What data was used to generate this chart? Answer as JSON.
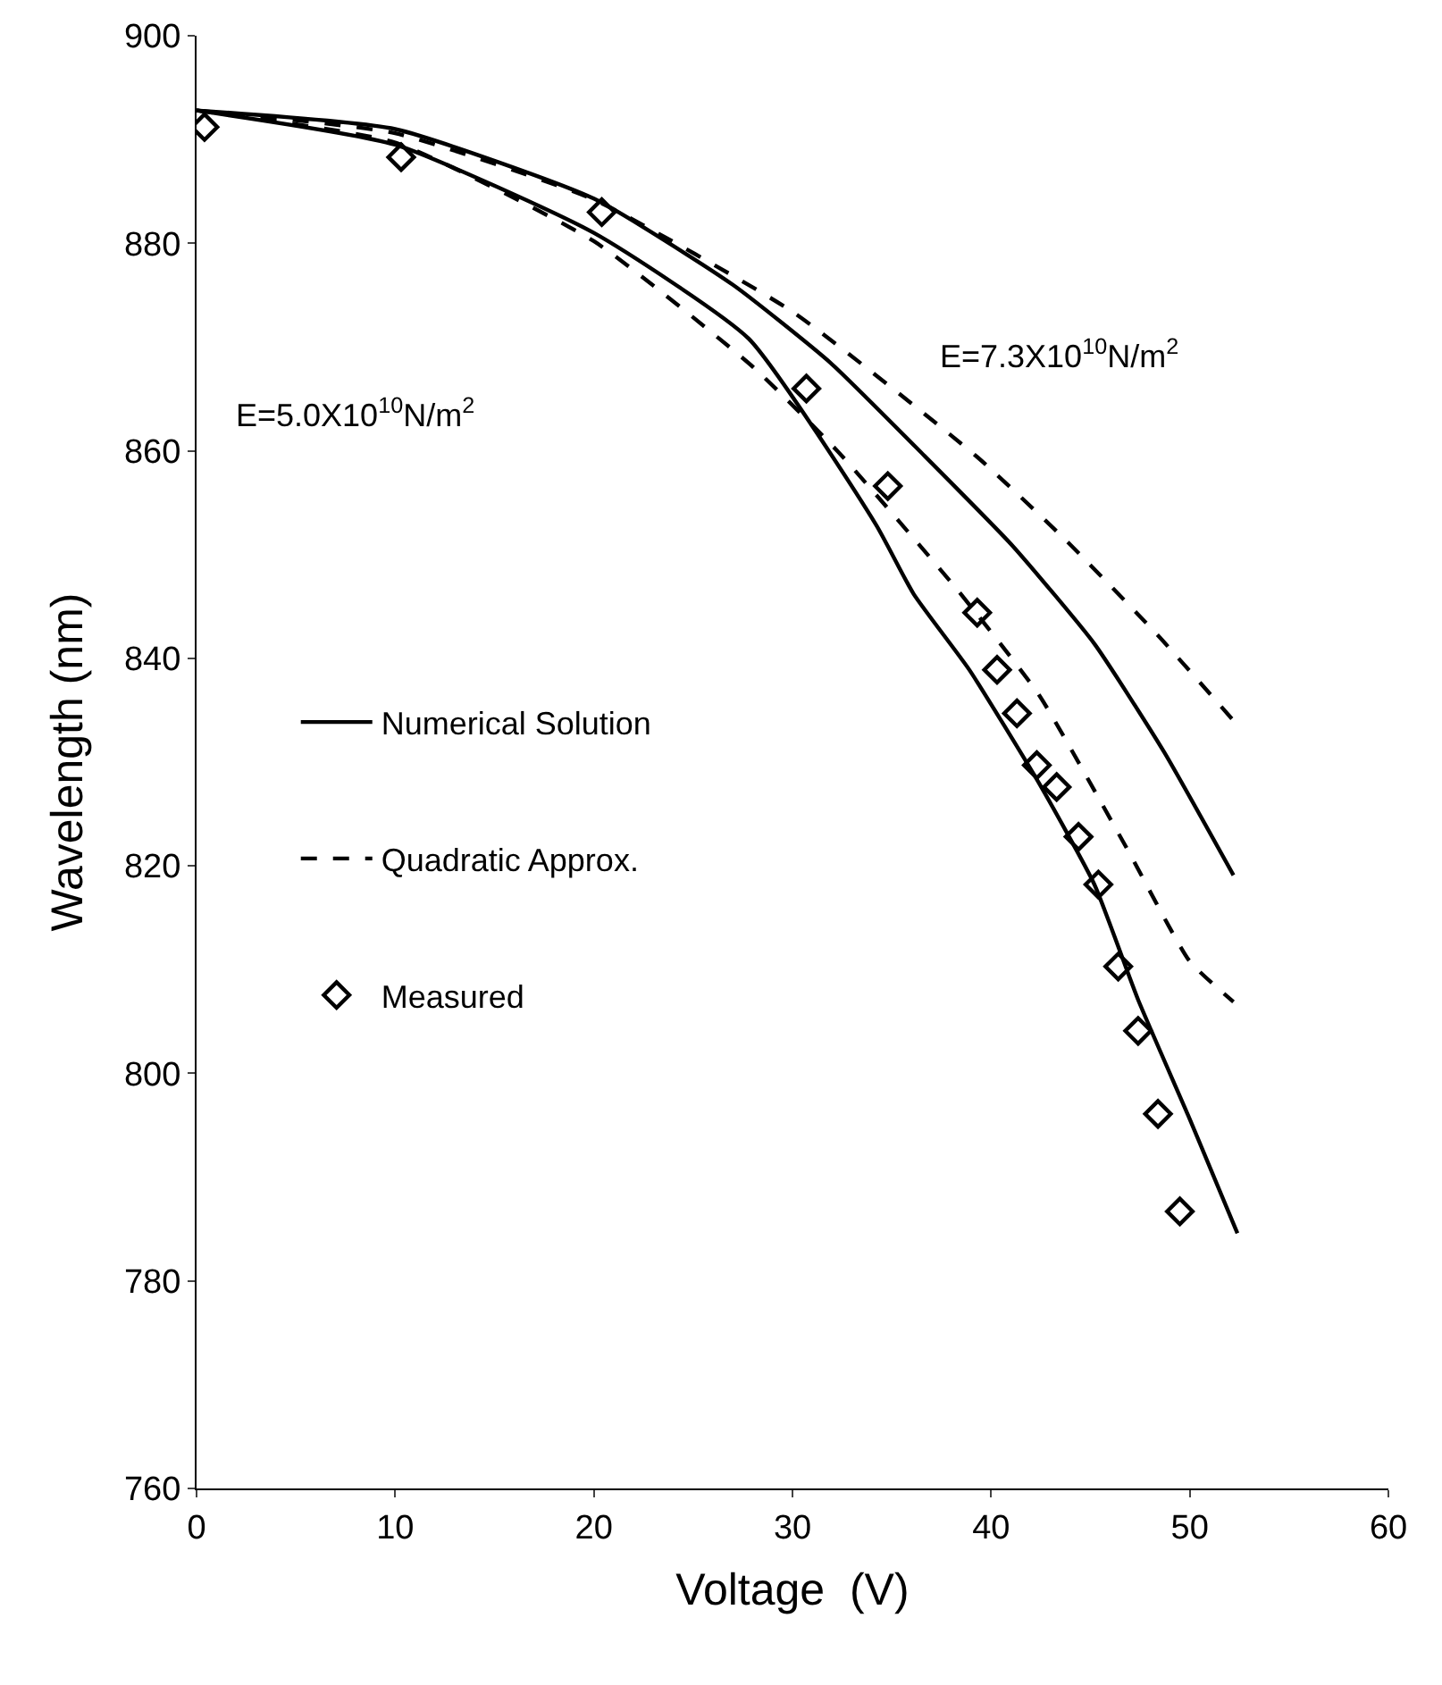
{
  "chart_data": {
    "type": "line",
    "xlabel": "Voltage  (V)",
    "ylabel": "Wavelength (nm)",
    "xlim": [
      0,
      60
    ],
    "xticks": [
      0,
      10,
      20,
      30,
      40,
      50,
      60
    ],
    "ylim": [
      760,
      900
    ],
    "yticks": [
      760,
      780,
      800,
      820,
      840,
      860,
      880,
      900
    ],
    "legend": "left",
    "annotations": [
      "E=5.0X10$^{10}$N/m$^{2}$",
      "E=7.3X10$^{10}$N/m$^{2}$"
    ],
    "series": [
      {
        "name": "Numerical Solution",
        "color": "#000000",
        "line_style": "solid",
        "marker": "none",
        "x": [
          0,
          10,
          20,
          27.8,
          34.2,
          36.1,
          38.9,
          42.4,
          45.2,
          47.4,
          50.0,
          52.4
        ],
        "values": [
          892.8,
          889.5,
          881,
          870.8,
          852.9,
          846.2,
          838.9,
          828.0,
          818.2,
          807.1,
          795.6,
          784.6
        ]
      },
      {
        "color": "#000000",
        "line_style": "solid",
        "marker": "none",
        "x": [
          0,
          10,
          20,
          27,
          31.9,
          36.6,
          41.1,
          45.2,
          48.7,
          52.2
        ],
        "values": [
          892.8,
          891.0,
          884.3,
          876.0,
          868.5,
          859.6,
          850.8,
          841.4,
          831.0,
          819.1
        ]
      },
      {
        "name": "Quadratic Approx.",
        "color": "#000000",
        "line_style": "dashed",
        "marker": "none",
        "x": [
          0,
          10,
          20,
          28,
          32.3,
          38.3,
          42.4,
          46.8,
          50.0,
          52.2
        ],
        "values": [
          892.8,
          889.7,
          880.2,
          868.1,
          859.9,
          846.6,
          836.5,
          821.8,
          810.8,
          806.9
        ]
      },
      {
        "color": "#000000",
        "line_style": "dashed",
        "marker": "none",
        "x": [
          0,
          10,
          20,
          30,
          39.3,
          43.7,
          48.4,
          52.2
        ],
        "values": [
          892.8,
          890.6,
          884.2,
          873.4,
          859.4,
          851.5,
          842.2,
          834.0
        ]
      },
      {
        "name": "Measured",
        "type": "scatter",
        "color": "#000000",
        "marker": "diamond",
        "x": [
          0.4,
          10.3,
          20.4,
          30.7,
          34.8,
          39.3,
          40.3,
          41.3,
          42.3,
          43.3,
          44.4,
          45.4,
          46.4,
          47.4,
          48.4,
          49.5
        ],
        "values": [
          891.2,
          888.3,
          883.0,
          866.0,
          856.6,
          844.4,
          838.9,
          834.7,
          829.7,
          827.6,
          822.8,
          818.2,
          810.3,
          804.1,
          796.1,
          786.7
        ]
      }
    ]
  }
}
